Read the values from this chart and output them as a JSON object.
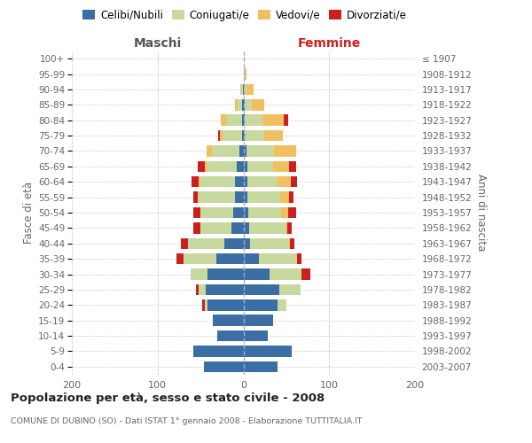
{
  "age_groups": [
    "0-4",
    "5-9",
    "10-14",
    "15-19",
    "20-24",
    "25-29",
    "30-34",
    "35-39",
    "40-44",
    "45-49",
    "50-54",
    "55-59",
    "60-64",
    "65-69",
    "70-74",
    "75-79",
    "80-84",
    "85-89",
    "90-94",
    "95-99",
    "100+"
  ],
  "birth_years": [
    "2003-2007",
    "1998-2002",
    "1993-1997",
    "1988-1992",
    "1983-1987",
    "1978-1982",
    "1973-1977",
    "1968-1972",
    "1963-1967",
    "1958-1962",
    "1953-1957",
    "1948-1952",
    "1943-1947",
    "1938-1942",
    "1933-1937",
    "1928-1932",
    "1923-1927",
    "1918-1922",
    "1913-1917",
    "1908-1912",
    "≤ 1907"
  ],
  "male_celibi": [
    46,
    58,
    30,
    36,
    42,
    44,
    42,
    32,
    22,
    14,
    12,
    10,
    10,
    8,
    5,
    2,
    2,
    2,
    1,
    0,
    0
  ],
  "male_coniugati": [
    0,
    0,
    0,
    0,
    3,
    8,
    20,
    38,
    43,
    36,
    38,
    42,
    40,
    35,
    32,
    22,
    18,
    5,
    2,
    0,
    0
  ],
  "male_vedovi": [
    0,
    0,
    0,
    0,
    0,
    0,
    0,
    0,
    0,
    0,
    0,
    1,
    2,
    2,
    6,
    3,
    6,
    3,
    1,
    0,
    0
  ],
  "male_divorziati": [
    0,
    0,
    0,
    0,
    3,
    3,
    0,
    8,
    8,
    8,
    8,
    5,
    8,
    8,
    0,
    2,
    0,
    0,
    0,
    0,
    0
  ],
  "female_nubili": [
    40,
    56,
    28,
    35,
    40,
    42,
    30,
    18,
    8,
    7,
    6,
    5,
    5,
    5,
    4,
    2,
    2,
    2,
    1,
    1,
    0
  ],
  "female_coniugate": [
    0,
    0,
    0,
    0,
    10,
    25,
    38,
    45,
    45,
    42,
    38,
    38,
    35,
    30,
    32,
    22,
    20,
    8,
    3,
    1,
    0
  ],
  "female_vedove": [
    0,
    0,
    0,
    0,
    0,
    0,
    0,
    0,
    1,
    2,
    8,
    10,
    15,
    18,
    25,
    22,
    25,
    14,
    8,
    2,
    0
  ],
  "female_divorziate": [
    0,
    0,
    0,
    0,
    0,
    0,
    10,
    5,
    5,
    5,
    10,
    5,
    8,
    8,
    0,
    0,
    5,
    0,
    0,
    0,
    0
  ],
  "color_celibi": "#3a6ea5",
  "color_coniugati": "#c8d9a0",
  "color_vedovi": "#f0c060",
  "color_divorziati": "#cc2020",
  "title": "Popolazione per età, sesso e stato civile - 2008",
  "subtitle": "COMUNE DI DUBINO (SO) - Dati ISTAT 1° gennaio 2008 - Elaborazione TUTTITALIA.IT",
  "label_maschi": "Maschi",
  "label_femmine": "Femmine",
  "ylabel_left": "Fasce di età",
  "ylabel_right": "Anni di nascita",
  "legend_celibi": "Celibi/Nubili",
  "legend_coniugati": "Coniugati/e",
  "legend_vedovi": "Vedovi/e",
  "legend_divorziati": "Divorziati/e",
  "xlim": 200
}
